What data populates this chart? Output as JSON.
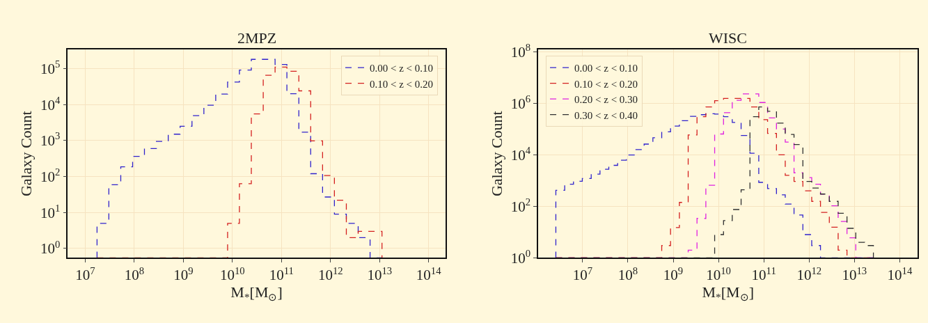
{
  "chart_data": [
    {
      "type": "histogram",
      "title": "2MPZ",
      "xlabel": "M$_{*}$[M$_{⊙}$]",
      "ylabel": "Galaxy Count",
      "log": "xy",
      "grid": true,
      "legend": "top right",
      "line_style": "dashed",
      "xlim": [
        4400000.0,
        220000000000000.0
      ],
      "ylim": [
        0.55,
        340000.0
      ],
      "xticks": [
        {
          "value": 10000000.0,
          "label": "10$^{7}$"
        },
        {
          "value": 100000000.0,
          "label": "10$^{8}$"
        },
        {
          "value": 1000000000.0,
          "label": "10$^{9}$"
        },
        {
          "value": 10000000000.0,
          "label": "10$^{10}$"
        },
        {
          "value": 100000000000.0,
          "label": "10$^{11}$"
        },
        {
          "value": 1000000000000.0,
          "label": "10$^{12}$"
        },
        {
          "value": 10000000000000.0,
          "label": "10$^{13}$"
        },
        {
          "value": 100000000000000.0,
          "label": "10$^{14}$"
        }
      ],
      "yticks": [
        {
          "value": 1,
          "label": "10$^{0}$"
        },
        {
          "value": 10,
          "label": "10$^{1}$"
        },
        {
          "value": 100,
          "label": "10$^{2}$"
        },
        {
          "value": 1000,
          "label": "10$^{3}$"
        },
        {
          "value": 10000,
          "label": "10$^{4}$"
        },
        {
          "value": 100000,
          "label": "10$^{5}$"
        }
      ],
      "bins": [
        17400000.0,
        30300000.0,
        53000000.0,
        92500000.0,
        161000000.0,
        282000000.0,
        492000000.0,
        859000000.0,
        1500000000.0,
        2620000000.0,
        4570000000.0,
        7980000000.0,
        13900000000.0,
        24300000000.0,
        42500000000.0,
        74100000000.0,
        129000000000.0,
        226000000000.0,
        394000000000.0,
        689000000000.0,
        1200000000000.0,
        2100000000000.0,
        3660000000000.0,
        6400000000000.0,
        11200000000000.0
      ],
      "series": [
        {
          "name": "0.00 < z < 0.10",
          "color": "#2f22cc",
          "values": [
            5,
            59,
            186,
            363,
            600,
            950,
            1500,
            2500,
            4900,
            9600,
            19500,
            42000,
            91000,
            180000,
            180000,
            130000,
            20000,
            1700,
            120,
            27,
            9,
            5,
            2,
            null
          ]
        },
        {
          "name": "0.10 < z < 0.20",
          "color": "#d42020",
          "values": [
            null,
            null,
            null,
            null,
            null,
            null,
            null,
            null,
            null,
            null,
            null,
            5,
            63,
            5500,
            65000,
            110000,
            84000,
            24000,
            980,
            107,
            22,
            2,
            3,
            3
          ]
        }
      ]
    },
    {
      "type": "histogram",
      "title": "WISC",
      "xlabel": "M$_{*}$[M$_{⊙}$]",
      "ylabel": "Galaxy Count",
      "log": "xy",
      "grid": true,
      "legend": "top left",
      "line_style": "dashed",
      "xlim": [
        1050000.0,
        250000000000000.0
      ],
      "ylim": [
        1,
        123000000.0
      ],
      "xticks": [
        {
          "value": 10000000.0,
          "label": "10$^{7}$"
        },
        {
          "value": 100000000.0,
          "label": "10$^{8}$"
        },
        {
          "value": 1000000000.0,
          "label": "10$^{9}$"
        },
        {
          "value": 10000000000.0,
          "label": "10$^{10}$"
        },
        {
          "value": 100000000000.0,
          "label": "10$^{11}$"
        },
        {
          "value": 1000000000000.0,
          "label": "10$^{12}$"
        },
        {
          "value": 10000000000000.0,
          "label": "10$^{13}$"
        },
        {
          "value": 100000000000000.0,
          "label": "10$^{14}$"
        }
      ],
      "yticks": [
        {
          "value": 1,
          "label": "10$^{0}$"
        },
        {
          "value": 100,
          "label": "10$^{2}$"
        },
        {
          "value": 10000,
          "label": "10$^{4}$"
        },
        {
          "value": 1000000,
          "label": "10$^{6}$"
        },
        {
          "value": 100000000,
          "label": "10$^{8}$"
        }
      ],
      "bins": [
        2570000.0,
        4030000.0,
        6300000.0,
        9860000.0,
        15500000.0,
        24200000.0,
        37900000.0,
        59300000.0,
        92800000.0,
        145000000.0,
        228000000.0,
        356000000.0,
        558000000.0,
        873000000.0,
        1370000000.0,
        2140000000.0,
        3350000000.0,
        5250000000.0,
        8220000000.0,
        12900000000.0,
        20100000000.0,
        31500000000.0,
        49400000000.0,
        77300000000.0,
        121000000000.0,
        190000000000.0,
        297000000000.0,
        464000000000.0,
        727000000000.0,
        1140000000000.0,
        1780000000000.0,
        2790000000000.0,
        4370000000000.0,
        6840000000000.0,
        10700000000000.0,
        16800000000000.0,
        26200000000000.0
      ],
      "series": [
        {
          "name": "0.00 < z < 0.10",
          "color": "#2f22cc",
          "values": [
            420,
            720,
            940,
            1200,
            1780,
            2750,
            3900,
            6200,
            9800,
            16000,
            26000,
            46000,
            78000,
            130000,
            210000,
            310000,
            360000,
            390000,
            380000,
            300000,
            180000,
            56000,
            11500,
            850,
            490,
            280,
            123,
            46,
            8,
            3,
            null,
            null,
            null,
            null,
            null,
            null
          ]
        },
        {
          "name": "0.10 < z < 0.20",
          "color": "#d42020",
          "values": [
            null,
            null,
            null,
            null,
            null,
            null,
            null,
            null,
            null,
            null,
            null,
            null,
            3,
            15,
            142,
            59000,
            300000,
            720000,
            1260000,
            1550000,
            1550000,
            1550000,
            720000,
            230000,
            68000,
            10000,
            1600,
            920,
            400,
            156,
            58,
            15.5,
            2,
            null,
            null,
            null
          ]
        },
        {
          "name": "0.20 < z < 0.30",
          "color": "#e020e0",
          "values": [
            null,
            null,
            null,
            null,
            null,
            null,
            null,
            null,
            null,
            null,
            null,
            null,
            null,
            null,
            null,
            2,
            34,
            660,
            64000,
            430000,
            1300000,
            2300000,
            2300000,
            1070000,
            270000,
            100000,
            31000,
            2000,
            1300,
            720,
            300,
            105,
            26,
            6,
            null,
            null
          ]
        },
        {
          "name": "0.30 < z < 0.40",
          "color": "#303030",
          "values": [
            null,
            null,
            null,
            null,
            null,
            null,
            null,
            null,
            null,
            null,
            null,
            null,
            null,
            null,
            null,
            null,
            null,
            null,
            8,
            28,
            75,
            440,
            300000,
            720000,
            490000,
            170000,
            62000,
            25000,
            920,
            510,
            300,
            156,
            54,
            14,
            4,
            3
          ]
        }
      ]
    }
  ]
}
